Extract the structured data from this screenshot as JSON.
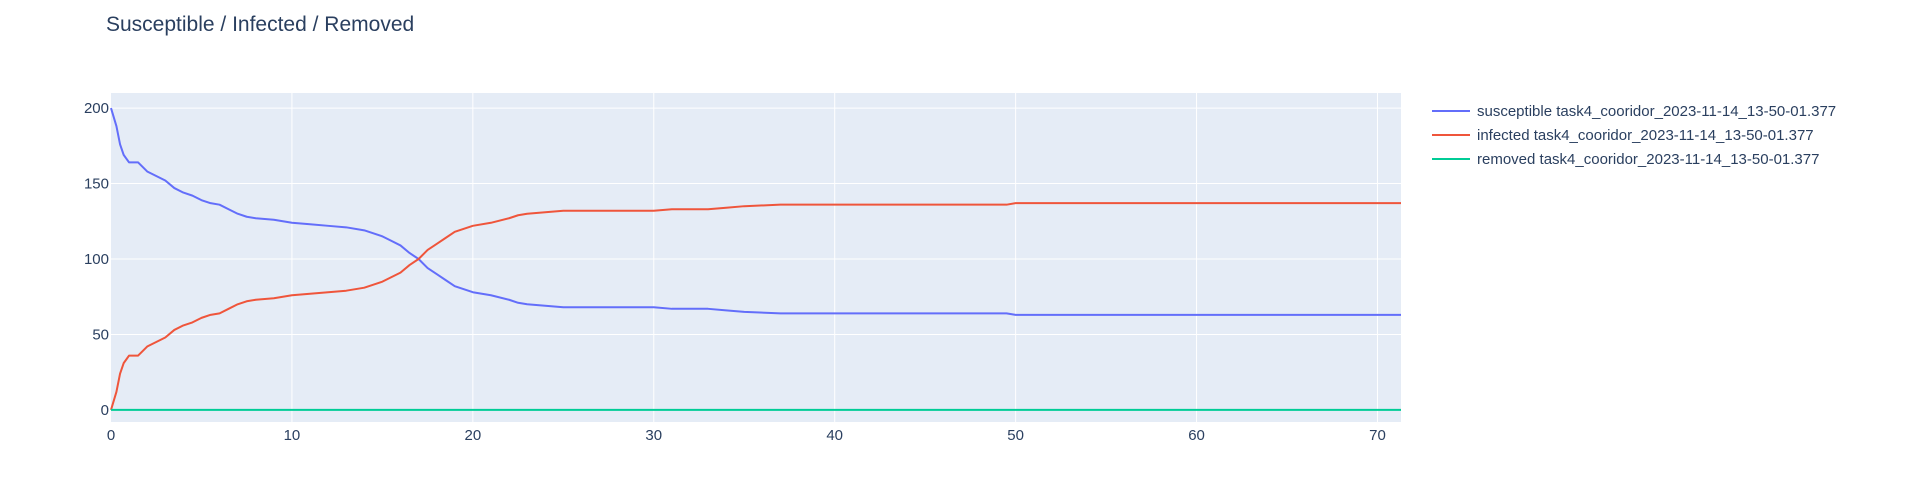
{
  "chart_data": {
    "type": "line",
    "title": "Susceptible / Infected / Removed",
    "xlabel": "",
    "ylabel": "",
    "xlim": [
      0,
      71.3
    ],
    "ylim": [
      -8,
      210
    ],
    "x_ticks": [
      0,
      10,
      20,
      30,
      40,
      50,
      60,
      70
    ],
    "y_ticks": [
      0,
      50,
      100,
      150,
      200
    ],
    "grid": true,
    "legend_position": "right",
    "colors": {
      "plot_bg": "#E5ECF6",
      "grid": "#ffffff",
      "text": "#2a3f5f"
    },
    "series": [
      {
        "name": "susceptible task4_cooridor_2023-11-14_13-50-01.377",
        "color": "#636EFA",
        "x": [
          0,
          0.3,
          0.5,
          0.7,
          1.0,
          1.5,
          2.0,
          2.5,
          3.0,
          3.5,
          4.0,
          4.5,
          5.0,
          5.5,
          6.0,
          6.5,
          7.0,
          7.5,
          8.0,
          9.0,
          10.0,
          11.0,
          12.0,
          13.0,
          14.0,
          14.5,
          15.0,
          15.5,
          16.0,
          16.5,
          17.0,
          17.5,
          18.0,
          18.5,
          19.0,
          19.5,
          20.0,
          21.0,
          22.0,
          22.5,
          23.0,
          24.0,
          25.0,
          26.0,
          28.0,
          30.0,
          31.0,
          33.0,
          34.0,
          35.0,
          37.0,
          40.0,
          45.0,
          49.5,
          50.0,
          55.0,
          60.0,
          65.0,
          71.3
        ],
        "y": [
          200,
          188,
          176,
          169,
          164,
          164,
          158,
          155,
          152,
          147,
          144,
          142,
          139,
          137,
          136,
          133,
          130,
          128,
          127,
          126,
          124,
          123,
          122,
          121,
          119,
          117,
          115,
          112,
          109,
          104,
          100,
          94,
          90,
          86,
          82,
          80,
          78,
          76,
          73,
          71,
          70,
          69,
          68,
          68,
          68,
          68,
          67,
          67,
          66,
          65,
          64,
          64,
          64,
          64,
          63,
          63,
          63,
          63,
          63
        ]
      },
      {
        "name": "infected task4_cooridor_2023-11-14_13-50-01.377",
        "color": "#EF553B",
        "x": [
          0,
          0.3,
          0.5,
          0.7,
          1.0,
          1.5,
          2.0,
          2.5,
          3.0,
          3.5,
          4.0,
          4.5,
          5.0,
          5.5,
          6.0,
          6.5,
          7.0,
          7.5,
          8.0,
          9.0,
          10.0,
          11.0,
          12.0,
          13.0,
          14.0,
          14.5,
          15.0,
          15.5,
          16.0,
          16.5,
          17.0,
          17.5,
          18.0,
          18.5,
          19.0,
          19.5,
          20.0,
          21.0,
          22.0,
          22.5,
          23.0,
          24.0,
          25.0,
          26.0,
          28.0,
          30.0,
          31.0,
          33.0,
          34.0,
          35.0,
          37.0,
          40.0,
          45.0,
          49.5,
          50.0,
          55.0,
          60.0,
          65.0,
          71.3
        ],
        "y": [
          0,
          12,
          24,
          31,
          36,
          36,
          42,
          45,
          48,
          53,
          56,
          58,
          61,
          63,
          64,
          67,
          70,
          72,
          73,
          74,
          76,
          77,
          78,
          79,
          81,
          83,
          85,
          88,
          91,
          96,
          100,
          106,
          110,
          114,
          118,
          120,
          122,
          124,
          127,
          129,
          130,
          131,
          132,
          132,
          132,
          132,
          133,
          133,
          134,
          135,
          136,
          136,
          136,
          136,
          137,
          137,
          137,
          137,
          137
        ]
      },
      {
        "name": "removed task4_cooridor_2023-11-14_13-50-01.377",
        "color": "#00CC96",
        "x": [
          0,
          71.3
        ],
        "y": [
          0,
          0
        ]
      }
    ]
  }
}
